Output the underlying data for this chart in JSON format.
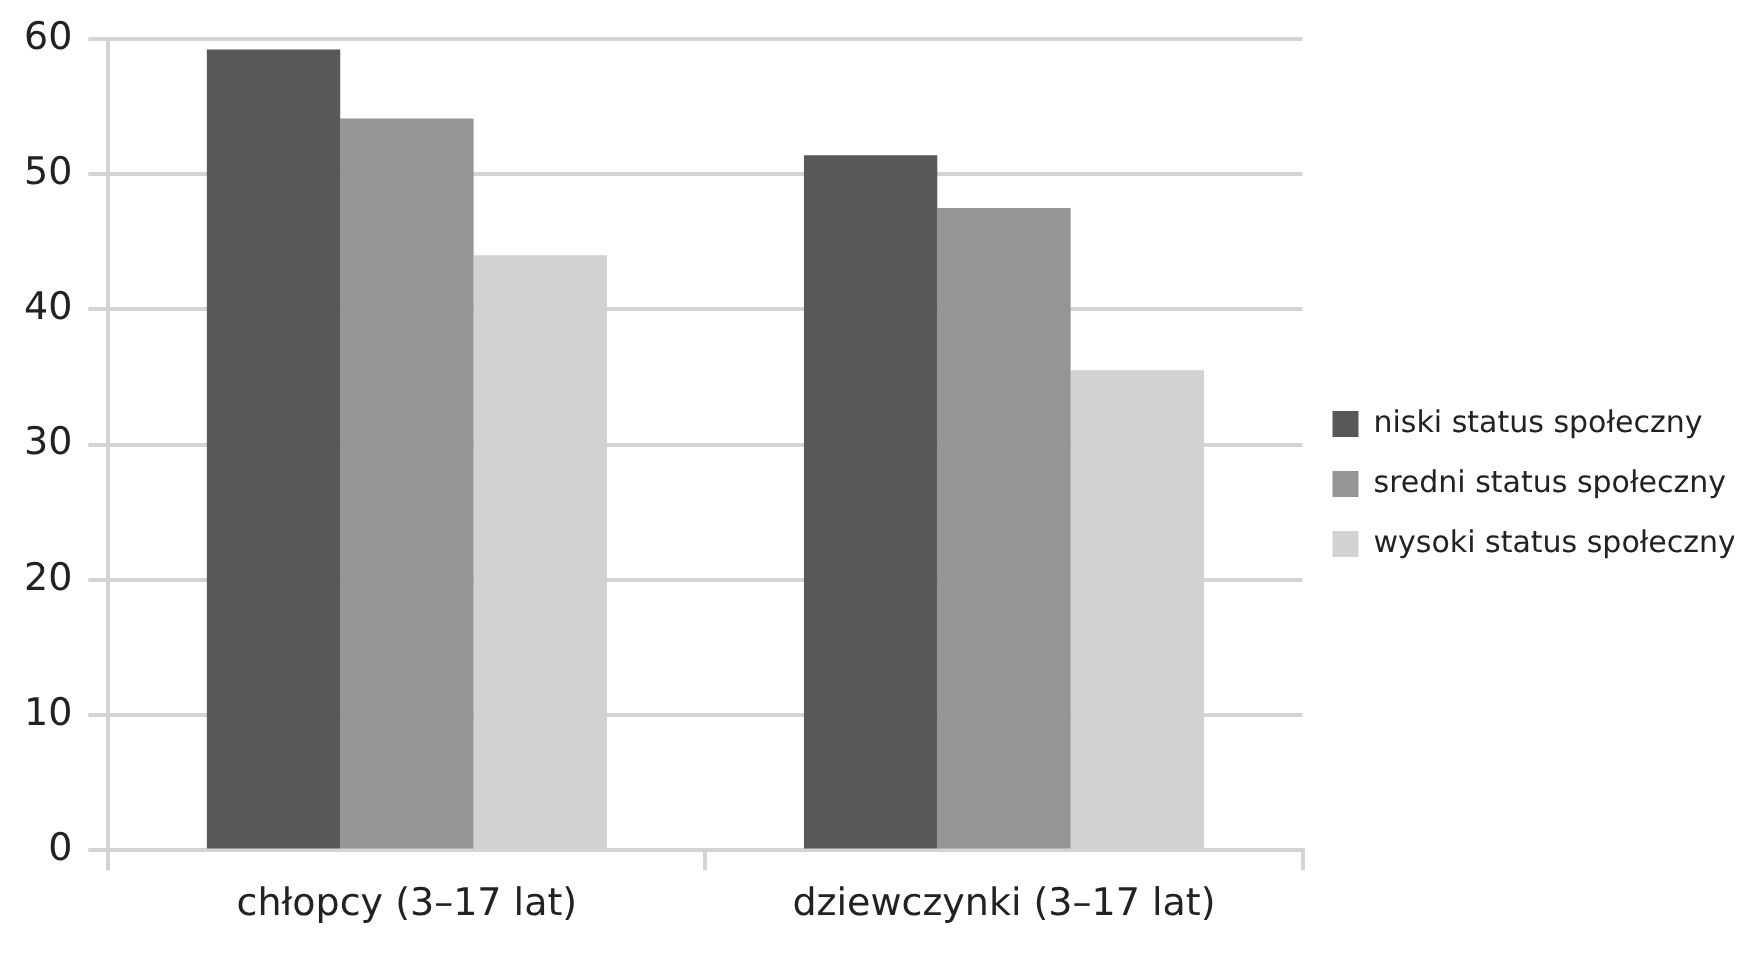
{
  "chart_data": {
    "type": "bar",
    "categories": [
      "chłopcy (3–17 lat)",
      "dziewczynki (3–17 lat)"
    ],
    "series": [
      {
        "name": "niski status społeczny",
        "color": "#58585a",
        "values": [
          59.2,
          51.4
        ]
      },
      {
        "name": "sredni status społeczny",
        "color": "#959598",
        "values": [
          54.1,
          47.5
        ]
      },
      {
        "name": "wysoki status społeczny",
        "color": "#d1d2d4",
        "values": [
          44.0,
          35.5
        ]
      }
    ],
    "ylim": [
      0,
      60
    ],
    "yticks": [
      0,
      10,
      20,
      30,
      40,
      50,
      60
    ],
    "grid": "y",
    "legend": "right"
  }
}
